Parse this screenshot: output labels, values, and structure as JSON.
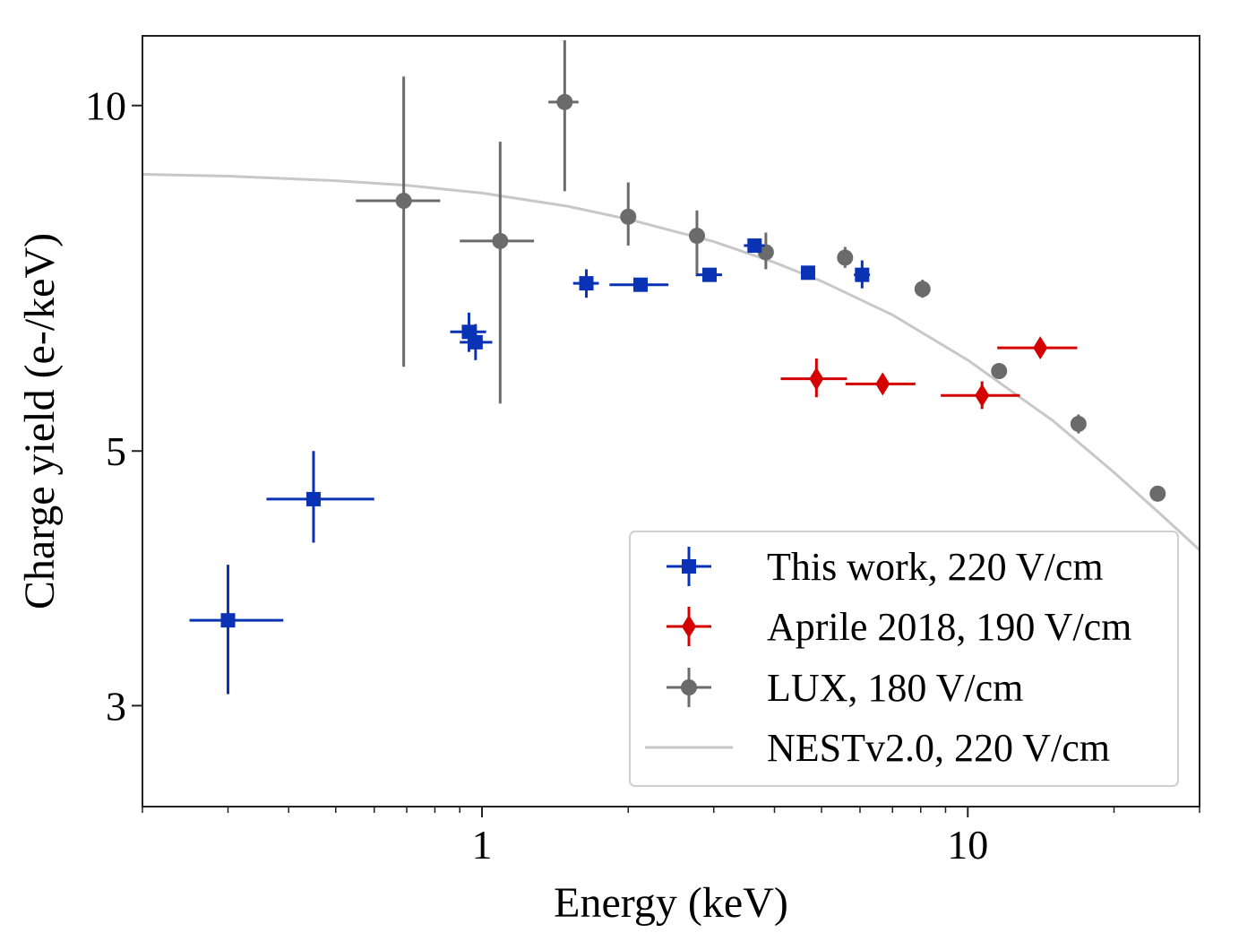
{
  "chart_data": {
    "type": "scatter",
    "xlabel": "Energy (keV)",
    "ylabel": "Charge yield (e-/keV)",
    "xscale": "log",
    "yscale": "log",
    "xlim": [
      0.2,
      30
    ],
    "ylim": [
      2.45,
      11.5
    ],
    "x_ticks": [
      {
        "value": 1,
        "label": "1"
      },
      {
        "value": 10,
        "label": "10"
      }
    ],
    "y_ticks": [
      {
        "value": 3,
        "label": "3"
      },
      {
        "value": 5,
        "label": "5"
      },
      {
        "value": 10,
        "label": "10"
      }
    ],
    "grid": false,
    "legend_position": "lower-right",
    "series": [
      {
        "name": "This work, 220 V/cm",
        "marker": "square",
        "color": "#0a32b4",
        "points": [
          {
            "x": 0.3,
            "y": 3.56,
            "xlo": 0.25,
            "xhi": 0.39,
            "ylo": 3.07,
            "yhi": 3.98
          },
          {
            "x": 0.45,
            "y": 4.54,
            "xlo": 0.36,
            "xhi": 0.6,
            "ylo": 4.16,
            "yhi": 5.0
          },
          {
            "x": 0.94,
            "y": 6.35,
            "xlo": 0.86,
            "xhi": 1.02,
            "ylo": 6.1,
            "yhi": 6.6
          },
          {
            "x": 0.97,
            "y": 6.22,
            "xlo": 0.9,
            "xhi": 1.05,
            "ylo": 6.0,
            "yhi": 6.45
          },
          {
            "x": 1.64,
            "y": 7.0,
            "xlo": 1.54,
            "xhi": 1.74,
            "ylo": 6.8,
            "yhi": 7.2
          },
          {
            "x": 2.12,
            "y": 6.98,
            "xlo": 1.83,
            "xhi": 2.42,
            "ylo": 6.9,
            "yhi": 7.06
          },
          {
            "x": 2.94,
            "y": 7.12,
            "xlo": 2.76,
            "xhi": 3.12,
            "ylo": 7.05,
            "yhi": 7.19
          },
          {
            "x": 3.64,
            "y": 7.55,
            "xlo": 3.46,
            "xhi": 3.82,
            "ylo": 7.48,
            "yhi": 7.62
          },
          {
            "x": 4.69,
            "y": 7.15,
            "xlo": 4.54,
            "xhi": 4.84,
            "ylo": 7.08,
            "yhi": 7.22
          },
          {
            "x": 6.06,
            "y": 7.12,
            "xlo": 5.83,
            "xhi": 6.29,
            "ylo": 6.93,
            "yhi": 7.33
          }
        ]
      },
      {
        "name": "Aprile 2018, 190 V/cm",
        "marker": "diamond",
        "color": "#d40000",
        "points": [
          {
            "x": 4.88,
            "y": 5.78,
            "xlo": 4.12,
            "xhi": 5.64,
            "ylo": 5.57,
            "yhi": 6.02
          },
          {
            "x": 6.68,
            "y": 5.72,
            "xlo": 5.6,
            "xhi": 7.8,
            "ylo": 5.64,
            "yhi": 5.8
          },
          {
            "x": 10.7,
            "y": 5.59,
            "xlo": 8.8,
            "xhi": 12.8,
            "ylo": 5.44,
            "yhi": 5.75
          },
          {
            "x": 14.1,
            "y": 6.15,
            "xlo": 11.5,
            "xhi": 16.8,
            "ylo": 6.1,
            "yhi": 6.2
          }
        ]
      },
      {
        "name": "LUX, 180 V/cm",
        "marker": "circle",
        "color": "#6b6b6b",
        "points": [
          {
            "x": 0.69,
            "y": 8.26,
            "xlo": 0.55,
            "xhi": 0.82,
            "ylo": 5.92,
            "yhi": 10.6
          },
          {
            "x": 1.09,
            "y": 7.62,
            "xlo": 0.9,
            "xhi": 1.28,
            "ylo": 5.5,
            "yhi": 9.3
          },
          {
            "x": 1.48,
            "y": 10.07,
            "xlo": 1.37,
            "xhi": 1.58,
            "ylo": 8.42,
            "yhi": 11.4
          },
          {
            "x": 2.0,
            "y": 8.0,
            "xlo": 1.96,
            "xhi": 2.04,
            "ylo": 7.55,
            "yhi": 8.57
          },
          {
            "x": 2.77,
            "y": 7.7,
            "xlo": 2.72,
            "xhi": 2.82,
            "ylo": 7.1,
            "yhi": 8.1
          },
          {
            "x": 3.84,
            "y": 7.45,
            "xlo": 3.78,
            "xhi": 3.9,
            "ylo": 7.2,
            "yhi": 7.75
          },
          {
            "x": 5.59,
            "y": 7.37,
            "xlo": 5.55,
            "xhi": 5.63,
            "ylo": 7.22,
            "yhi": 7.53
          },
          {
            "x": 8.07,
            "y": 6.92,
            "xlo": 8.03,
            "xhi": 8.11,
            "ylo": 6.8,
            "yhi": 7.05
          },
          {
            "x": 11.6,
            "y": 5.87,
            "xlo": 11.55,
            "xhi": 11.65,
            "ylo": 5.78,
            "yhi": 5.96
          },
          {
            "x": 16.9,
            "y": 5.28,
            "xlo": 16.85,
            "xhi": 16.95,
            "ylo": 5.18,
            "yhi": 5.38
          },
          {
            "x": 24.6,
            "y": 4.59,
            "xlo": 24.55,
            "xhi": 24.65,
            "ylo": 4.52,
            "yhi": 4.66
          }
        ]
      },
      {
        "name": "NESTv2.0, 220 V/cm",
        "type": "line",
        "color": "#c8c8c8",
        "x": [
          0.2,
          0.3,
          0.5,
          0.7,
          1,
          1.5,
          2,
          3,
          4,
          5,
          7,
          10,
          15,
          20,
          25,
          30
        ],
        "y": [
          8.71,
          8.68,
          8.6,
          8.52,
          8.39,
          8.17,
          7.96,
          7.61,
          7.3,
          7.03,
          6.57,
          6.0,
          5.31,
          4.79,
          4.4,
          4.1
        ]
      }
    ]
  }
}
